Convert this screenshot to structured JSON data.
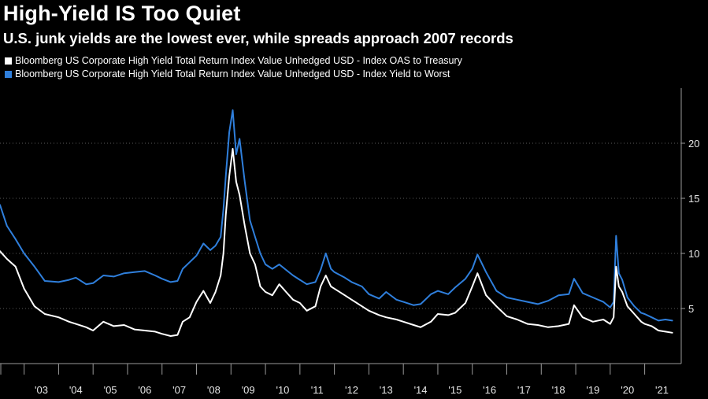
{
  "title": "High-Yield IS Too Quiet",
  "subtitle": "U.S. junk yields are the lowest ever, while spreads approach 2007 records",
  "colors": {
    "background": "#000000",
    "oas": "#ffffff",
    "ytw": "#2f7fdc",
    "axis": "#9a9a9a"
  },
  "chart_data": {
    "type": "line",
    "title": "High-Yield IS Too Quiet",
    "subtitle": "U.S. junk yields are the lowest ever, while spreads approach 2007 records",
    "xlabel": "",
    "ylabel": "",
    "xlim": [
      2002.3,
      2021.9
    ],
    "ylim": [
      0,
      25
    ],
    "yticks": [
      5,
      10,
      15,
      20
    ],
    "ytick_labels": [
      "5",
      "10",
      "15",
      "20"
    ],
    "xticks": [
      2003.0,
      2004.0,
      2005.0,
      2006.0,
      2007.0,
      2008.0,
      2009.0,
      2010.0,
      2011.0,
      2012.0,
      2013.0,
      2014.0,
      2015.0,
      2016.0,
      2017.0,
      2018.0,
      2019.0,
      2020.0,
      2021.0
    ],
    "xtick_labels": [
      "'03",
      "'04",
      "'05",
      "'06",
      "'07",
      "'08",
      "'09",
      "'10",
      "'11",
      "'12",
      "'13",
      "'14",
      "'15",
      "'16",
      "'17",
      "'18",
      "'19",
      "'20",
      "'21"
    ],
    "grid": "horizontal dotted",
    "series": [
      {
        "name": "Bloomberg US Corporate High Yield Total Return Index Value Unhedged USD - Index OAS to Treasury",
        "color": "#ffffff",
        "x": [
          2002.3,
          2002.5,
          2002.75,
          2003.0,
          2003.3,
          2003.6,
          2004.0,
          2004.3,
          2004.5,
          2004.8,
          2005.0,
          2005.3,
          2005.6,
          2005.9,
          2006.2,
          2006.5,
          2006.8,
          2007.0,
          2007.25,
          2007.45,
          2007.6,
          2007.8,
          2008.0,
          2008.2,
          2008.4,
          2008.55,
          2008.7,
          2008.78,
          2008.85,
          2008.95,
          2009.05,
          2009.15,
          2009.25,
          2009.4,
          2009.55,
          2009.7,
          2009.85,
          2010.0,
          2010.2,
          2010.4,
          2010.6,
          2010.8,
          2011.0,
          2011.2,
          2011.45,
          2011.6,
          2011.75,
          2011.9,
          2012.0,
          2012.3,
          2012.5,
          2012.8,
          2013.0,
          2013.3,
          2013.5,
          2013.8,
          2014.0,
          2014.3,
          2014.5,
          2014.8,
          2015.0,
          2015.3,
          2015.5,
          2015.8,
          2016.0,
          2016.15,
          2016.4,
          2016.7,
          2017.0,
          2017.3,
          2017.6,
          2017.9,
          2018.2,
          2018.5,
          2018.8,
          2018.95,
          2019.2,
          2019.5,
          2019.8,
          2020.0,
          2020.1,
          2020.17,
          2020.25,
          2020.35,
          2020.5,
          2020.7,
          2020.9,
          2021.0,
          2021.2,
          2021.4,
          2021.6,
          2021.8
        ],
        "values": [
          10.2,
          9.5,
          8.8,
          6.8,
          5.2,
          4.5,
          4.2,
          3.8,
          3.6,
          3.3,
          3.0,
          3.8,
          3.4,
          3.5,
          3.1,
          3.0,
          2.9,
          2.7,
          2.5,
          2.6,
          3.8,
          4.2,
          5.6,
          6.6,
          5.5,
          6.5,
          8.0,
          10.0,
          13.5,
          17.0,
          19.5,
          16.5,
          15.3,
          12.5,
          10.0,
          9.0,
          7.0,
          6.5,
          6.2,
          7.2,
          6.5,
          5.8,
          5.5,
          4.8,
          5.2,
          7.0,
          8.0,
          7.0,
          6.8,
          6.2,
          5.8,
          5.2,
          4.8,
          4.4,
          4.2,
          4.0,
          3.8,
          3.5,
          3.3,
          3.8,
          4.5,
          4.4,
          4.6,
          5.5,
          7.0,
          8.2,
          6.2,
          5.2,
          4.3,
          4.0,
          3.6,
          3.5,
          3.3,
          3.4,
          3.6,
          5.3,
          4.2,
          3.8,
          4.0,
          3.6,
          4.2,
          8.8,
          7.0,
          6.5,
          5.2,
          4.5,
          3.8,
          3.6,
          3.4,
          3.0,
          2.9,
          2.8
        ]
      },
      {
        "name": "Bloomberg US Corporate High Yield Total Return Index Value Unhedged USD - Index Yield to Worst",
        "color": "#2f7fdc",
        "x": [
          2002.3,
          2002.5,
          2002.75,
          2003.0,
          2003.3,
          2003.6,
          2004.0,
          2004.3,
          2004.5,
          2004.8,
          2005.0,
          2005.3,
          2005.6,
          2005.9,
          2006.2,
          2006.5,
          2006.8,
          2007.0,
          2007.25,
          2007.45,
          2007.6,
          2007.8,
          2008.0,
          2008.2,
          2008.4,
          2008.55,
          2008.7,
          2008.78,
          2008.85,
          2008.95,
          2009.05,
          2009.15,
          2009.25,
          2009.4,
          2009.55,
          2009.7,
          2009.85,
          2010.0,
          2010.2,
          2010.4,
          2010.6,
          2010.8,
          2011.0,
          2011.2,
          2011.45,
          2011.6,
          2011.75,
          2011.9,
          2012.0,
          2012.3,
          2012.5,
          2012.8,
          2013.0,
          2013.3,
          2013.5,
          2013.8,
          2014.0,
          2014.3,
          2014.5,
          2014.8,
          2015.0,
          2015.3,
          2015.5,
          2015.8,
          2016.0,
          2016.15,
          2016.4,
          2016.7,
          2017.0,
          2017.3,
          2017.6,
          2017.9,
          2018.2,
          2018.5,
          2018.8,
          2018.95,
          2019.2,
          2019.5,
          2019.8,
          2020.0,
          2020.1,
          2020.17,
          2020.25,
          2020.35,
          2020.5,
          2020.7,
          2020.9,
          2021.0,
          2021.2,
          2021.4,
          2021.6,
          2021.8
        ],
        "values": [
          14.4,
          12.5,
          11.3,
          10.0,
          8.8,
          7.5,
          7.4,
          7.6,
          7.8,
          7.2,
          7.3,
          8.0,
          7.9,
          8.2,
          8.3,
          8.4,
          8.0,
          7.7,
          7.4,
          7.5,
          8.6,
          9.2,
          9.8,
          10.9,
          10.3,
          10.7,
          11.5,
          14.0,
          17.0,
          21.0,
          23.0,
          19.0,
          20.4,
          16.5,
          13.0,
          11.5,
          10.0,
          9.0,
          8.6,
          9.0,
          8.5,
          8.0,
          7.6,
          7.2,
          7.4,
          8.5,
          10.0,
          8.6,
          8.3,
          7.8,
          7.4,
          7.0,
          6.3,
          5.9,
          6.5,
          5.8,
          5.6,
          5.3,
          5.4,
          6.3,
          6.6,
          6.3,
          6.9,
          7.7,
          8.6,
          9.9,
          8.3,
          6.6,
          6.0,
          5.8,
          5.6,
          5.4,
          5.7,
          6.2,
          6.3,
          7.7,
          6.4,
          6.0,
          5.6,
          5.1,
          5.6,
          11.6,
          8.2,
          7.6,
          6.0,
          5.2,
          4.6,
          4.5,
          4.2,
          3.9,
          4.0,
          3.9
        ]
      }
    ]
  }
}
